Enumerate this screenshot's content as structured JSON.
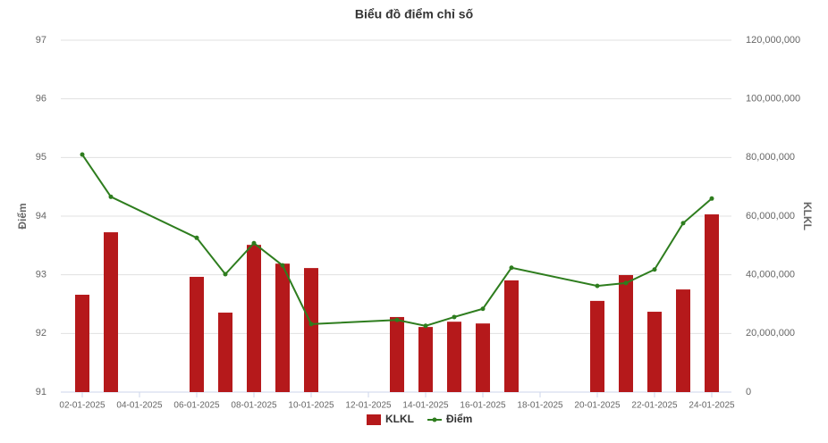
{
  "chart_data": {
    "type": "bar-line",
    "title": "Biểu đồ điểm chỉ số",
    "ylabel": "Điểm",
    "y2label": "KLKL",
    "x": [
      "02-01-2025",
      "03-01-2025",
      "06-01-2025",
      "07-01-2025",
      "08-01-2025",
      "09-01-2025",
      "10-01-2025",
      "13-01-2025",
      "14-01-2025",
      "15-01-2025",
      "16-01-2025",
      "17-01-2025",
      "20-01-2025",
      "21-01-2025",
      "22-01-2025",
      "23-01-2025",
      "24-01-2025"
    ],
    "xlim": [
      "01-01-2025",
      "25-01-2025"
    ],
    "xticks": [
      "02-01-2025",
      "04-01-2025",
      "06-01-2025",
      "08-01-2025",
      "10-01-2025",
      "12-01-2025",
      "14-01-2025",
      "16-01-2025",
      "18-01-2025",
      "20-01-2025",
      "22-01-2025",
      "24-01-2025"
    ],
    "ylim": [
      91,
      97
    ],
    "yticks": [
      91,
      92,
      93,
      94,
      95,
      96,
      97
    ],
    "y2lim": [
      0,
      120000000
    ],
    "y2ticks": [
      0,
      {
        "value": 20000000,
        "label": "20,000,000"
      },
      {
        "value": 40000000,
        "label": "40,000,000"
      },
      {
        "value": 60000000,
        "label": "60,000,000"
      },
      {
        "value": 80000000,
        "label": "80,000,000"
      },
      {
        "value": 100000000,
        "label": "100,000,000"
      },
      {
        "value": 120000000,
        "label": "120,000,000"
      }
    ],
    "grid": true,
    "legend": "bottom",
    "series": [
      {
        "name": "KLKL",
        "type": "bar",
        "axis": "y2",
        "color": "#b5191b",
        "values": [
          33200000,
          54500000,
          39300000,
          27100000,
          50200000,
          43800000,
          42300000,
          25600000,
          22200000,
          24000000,
          23400000,
          38100000,
          31100000,
          39900000,
          27400000,
          35000000,
          60600000
        ]
      },
      {
        "name": "Điểm",
        "type": "line",
        "axis": "y",
        "color": "#2e7d1e",
        "values": [
          95.05,
          94.33,
          93.63,
          93.01,
          93.54,
          93.16,
          92.16,
          92.23,
          92.13,
          92.28,
          92.42,
          93.12,
          92.81,
          92.86,
          93.09,
          93.88,
          94.3
        ]
      }
    ]
  }
}
